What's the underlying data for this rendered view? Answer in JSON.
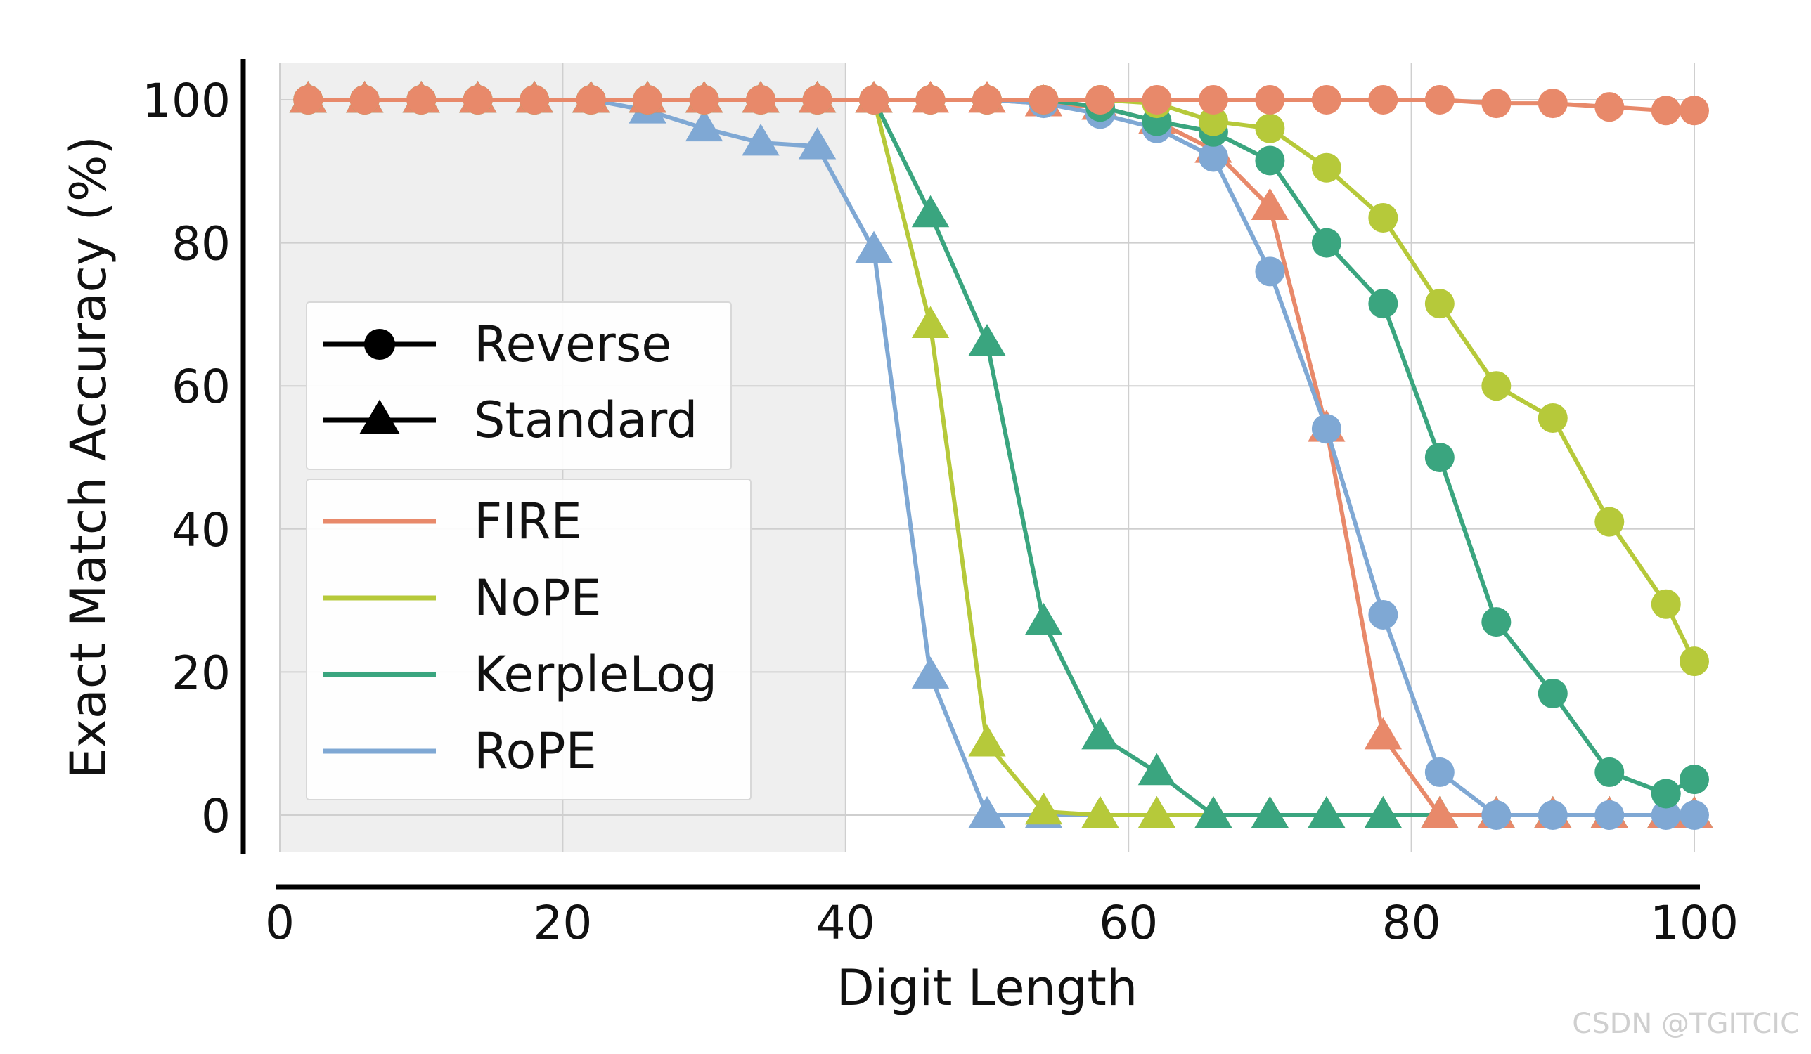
{
  "colors": {
    "FIRE": "#e8896a",
    "NoPE": "#b6c93a",
    "KerpleLog": "#3aa57f",
    "RoPE": "#7fa8d4",
    "train_region": "#efefef",
    "grid": "#cfcfcf",
    "axis": "#000000"
  },
  "watermark": "CSDN @TGITCIC",
  "chart_data": {
    "type": "line",
    "xlabel": "Digit Length",
    "ylabel": "Exact Match Accuracy (%)",
    "xlim": [
      0,
      100
    ],
    "ylim": [
      -5,
      105
    ],
    "xticks": [
      0,
      20,
      40,
      60,
      80,
      100
    ],
    "yticks": [
      0,
      20,
      40,
      60,
      80,
      100
    ],
    "grid": true,
    "train_region": [
      0,
      40
    ],
    "legend_markers": {
      "title": "",
      "position": "center-left",
      "entries": [
        {
          "label": "Reverse",
          "marker": "circle"
        },
        {
          "label": "Standard",
          "marker": "triangle"
        }
      ]
    },
    "legend_methods": {
      "position": "center-left",
      "entries": [
        "FIRE",
        "NoPE",
        "KerpleLog",
        "RoPE"
      ]
    },
    "series": [
      {
        "name": "RoPE",
        "format": "Standard",
        "x": [
          2,
          6,
          10,
          14,
          18,
          22,
          26,
          30,
          34,
          38,
          42,
          46,
          50,
          54,
          58,
          62,
          66,
          70,
          74,
          78,
          82,
          86,
          90,
          94,
          98,
          100
        ],
        "y": [
          100,
          100,
          100,
          100,
          100,
          100,
          98.5,
          96,
          94,
          93.5,
          79,
          19.5,
          0,
          0,
          0,
          0,
          0,
          0,
          0,
          0,
          0,
          0,
          0,
          0,
          0,
          0
        ]
      },
      {
        "name": "NoPE",
        "format": "Standard",
        "x": [
          2,
          6,
          10,
          14,
          18,
          22,
          26,
          30,
          34,
          38,
          42,
          46,
          50,
          54,
          58,
          62,
          66,
          70,
          74,
          78,
          82,
          86,
          90,
          94,
          98,
          100
        ],
        "y": [
          100,
          100,
          100,
          100,
          100,
          100,
          100,
          100,
          100,
          100,
          100,
          68.5,
          10,
          0.5,
          0,
          0,
          0,
          0,
          0,
          0,
          0,
          0,
          0,
          0,
          0,
          0
        ]
      },
      {
        "name": "KerpleLog",
        "format": "Standard",
        "x": [
          2,
          6,
          10,
          14,
          18,
          22,
          26,
          30,
          34,
          38,
          42,
          46,
          50,
          54,
          58,
          62,
          66,
          70,
          74,
          78,
          82,
          86,
          90,
          94,
          98,
          100
        ],
        "y": [
          100,
          100,
          100,
          100,
          100,
          100,
          100,
          100,
          100,
          100,
          100,
          84,
          66,
          27,
          11,
          6,
          0,
          0,
          0,
          0,
          0,
          0,
          0,
          0,
          0,
          0
        ]
      },
      {
        "name": "FIRE",
        "format": "Standard",
        "x": [
          2,
          6,
          10,
          14,
          18,
          22,
          26,
          30,
          34,
          38,
          42,
          46,
          50,
          54,
          58,
          62,
          66,
          70,
          74,
          78,
          82,
          86,
          90,
          94,
          98,
          100
        ],
        "y": [
          100,
          100,
          100,
          100,
          100,
          100,
          100,
          100,
          100,
          100,
          100,
          100,
          100,
          99.5,
          99,
          97,
          93,
          85,
          54,
          11,
          0,
          0,
          0,
          0,
          0,
          0
        ]
      },
      {
        "name": "RoPE",
        "format": "Reverse",
        "x": [
          2,
          6,
          10,
          14,
          18,
          22,
          26,
          30,
          34,
          38,
          42,
          46,
          50,
          54,
          58,
          62,
          66,
          70,
          74,
          78,
          82,
          86,
          90,
          94,
          98,
          100
        ],
        "y": [
          100,
          100,
          100,
          100,
          100,
          100,
          100,
          100,
          100,
          100,
          100,
          100,
          100,
          99.5,
          98,
          96,
          92,
          76,
          54,
          28,
          6,
          0,
          0,
          0,
          0,
          0
        ]
      },
      {
        "name": "KerpleLog",
        "format": "Reverse",
        "x": [
          2,
          6,
          10,
          14,
          18,
          22,
          26,
          30,
          34,
          38,
          42,
          46,
          50,
          54,
          58,
          62,
          66,
          70,
          74,
          78,
          82,
          86,
          90,
          94,
          98,
          100
        ],
        "y": [
          100,
          100,
          100,
          100,
          100,
          100,
          100,
          100,
          100,
          100,
          100,
          100,
          100,
          100,
          99,
          97,
          95.5,
          91.5,
          80,
          71.5,
          50,
          27,
          17,
          6,
          3,
          5
        ]
      },
      {
        "name": "NoPE",
        "format": "Reverse",
        "x": [
          2,
          6,
          10,
          14,
          18,
          22,
          26,
          30,
          34,
          38,
          42,
          46,
          50,
          54,
          58,
          62,
          66,
          70,
          74,
          78,
          82,
          86,
          90,
          94,
          98,
          100
        ],
        "y": [
          100,
          100,
          100,
          100,
          100,
          100,
          100,
          100,
          100,
          100,
          100,
          100,
          100,
          100,
          100,
          99.5,
          97,
          96,
          90.5,
          83.5,
          71.5,
          60,
          55.5,
          41,
          29.5,
          21.5
        ]
      },
      {
        "name": "FIRE",
        "format": "Reverse",
        "x": [
          2,
          6,
          10,
          14,
          18,
          22,
          26,
          30,
          34,
          38,
          42,
          46,
          50,
          54,
          58,
          62,
          66,
          70,
          74,
          78,
          82,
          86,
          90,
          94,
          98,
          100
        ],
        "y": [
          100,
          100,
          100,
          100,
          100,
          100,
          100,
          100,
          100,
          100,
          100,
          100,
          100,
          100,
          100,
          100,
          100,
          100,
          100,
          100,
          100,
          99.5,
          99.5,
          99,
          98.5,
          98.5
        ]
      }
    ]
  }
}
